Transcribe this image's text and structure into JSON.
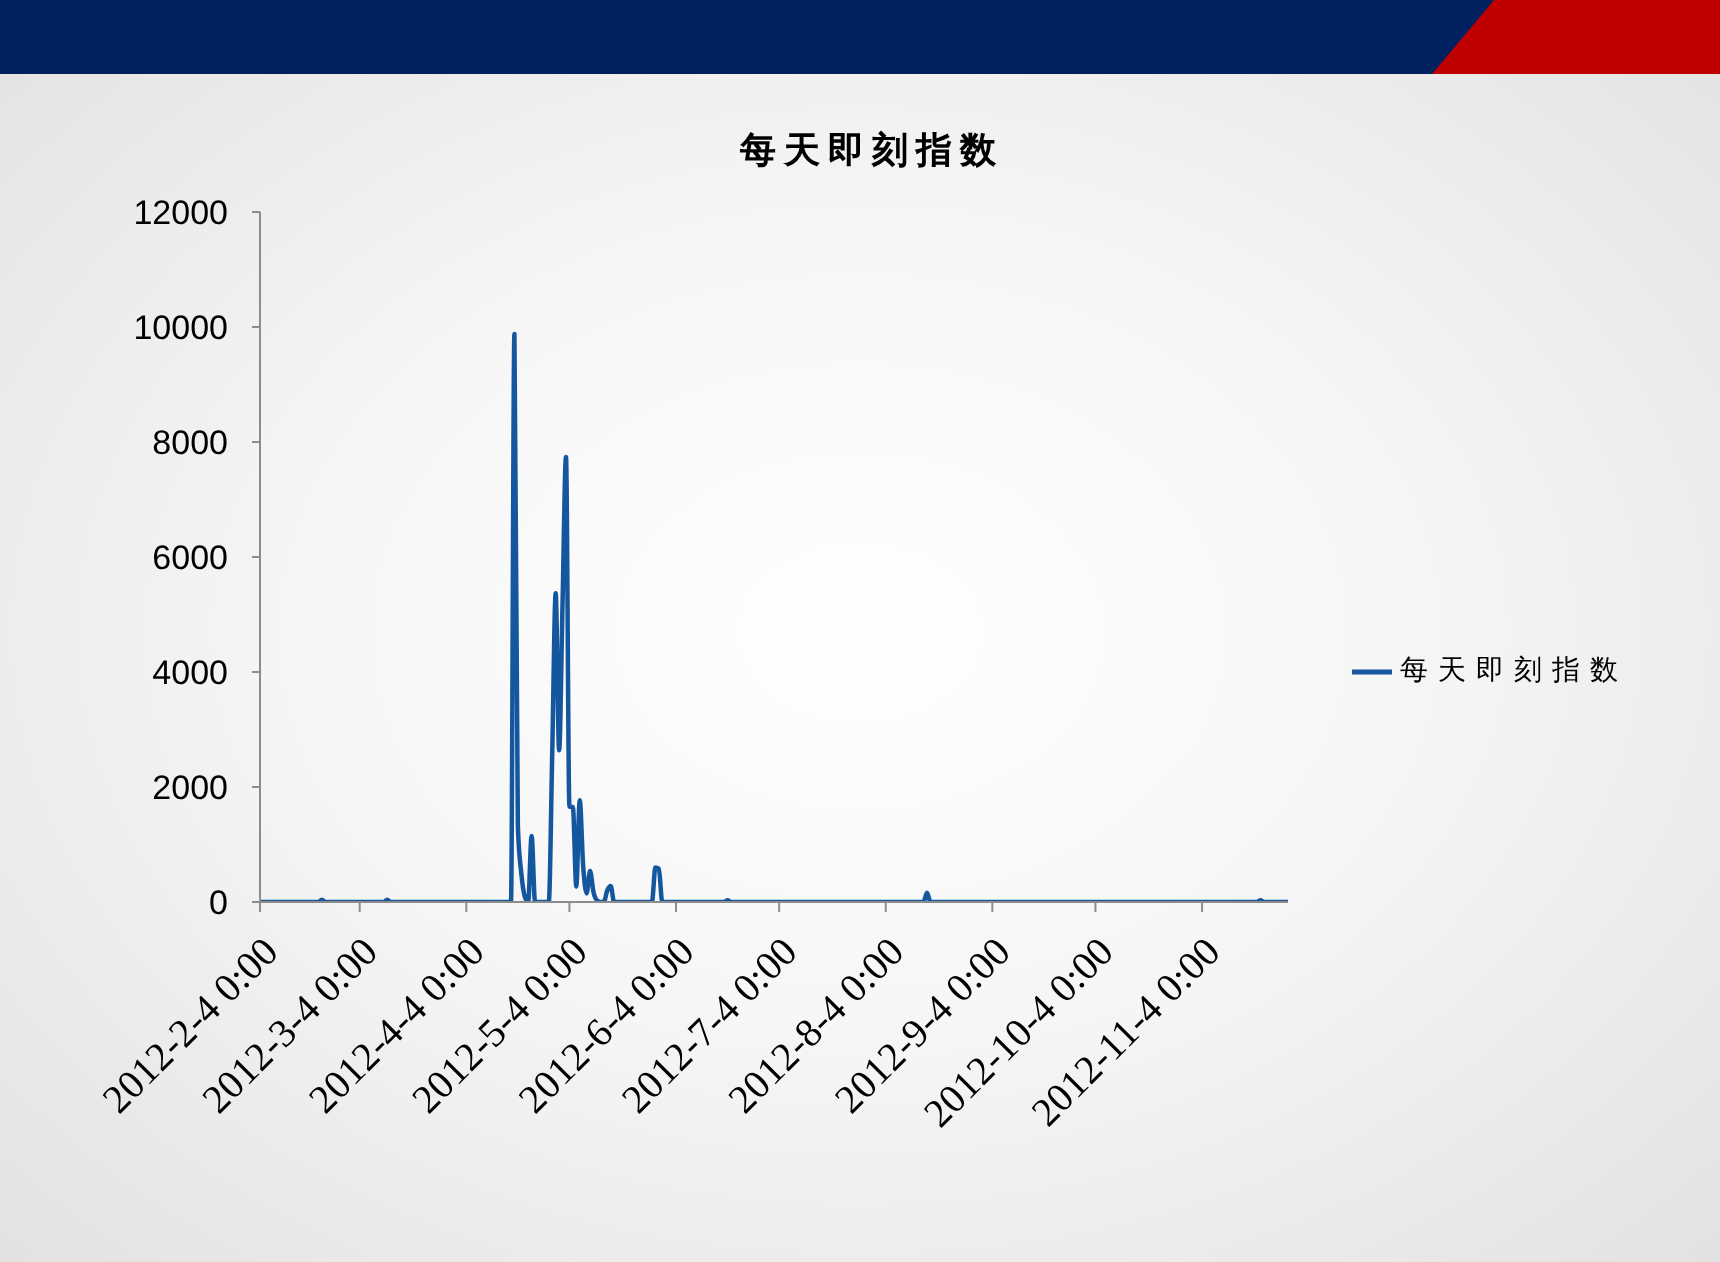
{
  "chart_data": {
    "type": "line",
    "title": "每天即刻指数",
    "x": [
      "2012-02-04",
      "2012-02-21",
      "2012-02-22",
      "2012-02-23",
      "2012-03-11",
      "2012-03-12",
      "2012-03-13",
      "2012-04-17",
      "2012-04-18",
      "2012-04-19",
      "2012-04-20",
      "2012-04-21",
      "2012-04-22",
      "2012-04-23",
      "2012-04-24",
      "2012-04-28",
      "2012-04-29",
      "2012-04-30",
      "2012-05-01",
      "2012-05-02",
      "2012-05-03",
      "2012-05-04",
      "2012-05-05",
      "2012-05-06",
      "2012-05-07",
      "2012-05-08",
      "2012-05-09",
      "2012-05-10",
      "2012-05-11",
      "2012-05-12",
      "2012-05-13",
      "2012-05-14",
      "2012-05-15",
      "2012-05-16",
      "2012-05-17",
      "2012-05-28",
      "2012-05-29",
      "2012-05-30",
      "2012-05-31",
      "2012-06-18",
      "2012-06-19",
      "2012-06-20",
      "2012-08-15",
      "2012-08-16",
      "2012-08-17",
      "2012-11-20",
      "2012-11-21",
      "2012-11-22",
      "2012-11-29"
    ],
    "series": [
      {
        "name": "每天即刻指数",
        "color": "#15579e",
        "values": [
          0,
          0,
          40,
          0,
          0,
          40,
          0,
          0,
          9880,
          1320,
          500,
          100,
          0,
          1150,
          0,
          0,
          2600,
          5370,
          2640,
          5200,
          7740,
          1660,
          1650,
          270,
          1770,
          620,
          150,
          540,
          170,
          30,
          0,
          0,
          200,
          280,
          0,
          0,
          600,
          580,
          0,
          0,
          30,
          0,
          0,
          160,
          0,
          0,
          30,
          0,
          0
        ]
      }
    ],
    "xlim": [
      "2012-02-04",
      "2012-11-29"
    ],
    "xticks": [
      {
        "value": "2012-02-04",
        "label": "2012-2-4 0:00"
      },
      {
        "value": "2012-03-04",
        "label": "2012-3-4 0:00"
      },
      {
        "value": "2012-04-04",
        "label": "2012-4-4 0:00"
      },
      {
        "value": "2012-05-04",
        "label": "2012-5-4 0:00"
      },
      {
        "value": "2012-06-04",
        "label": "2012-6-4 0:00"
      },
      {
        "value": "2012-07-04",
        "label": "2012-7-4 0:00"
      },
      {
        "value": "2012-08-04",
        "label": "2012-8-4 0:00"
      },
      {
        "value": "2012-09-04",
        "label": "2012-9-4 0:00"
      },
      {
        "value": "2012-10-04",
        "label": "2012-10-4 0:00"
      },
      {
        "value": "2012-11-04",
        "label": "2012-11-4 0:00"
      }
    ],
    "ylim": [
      0,
      12000
    ],
    "yticks": [
      0,
      2000,
      4000,
      6000,
      8000,
      10000,
      12000
    ],
    "legend": "right",
    "line_style": "solid"
  }
}
